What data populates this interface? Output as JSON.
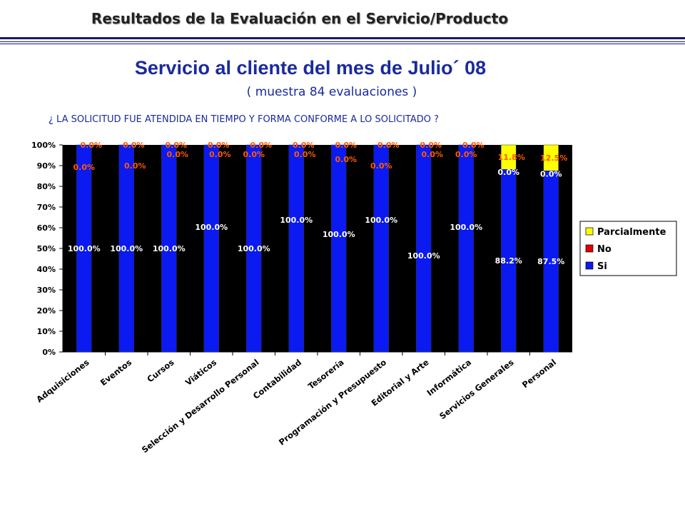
{
  "header": {
    "title": "Resultados de la Evaluación en el Servicio/Producto"
  },
  "main_title": "Servicio al cliente del mes de Julio´ 08",
  "subtitle": "( muestra 84 evaluaciones )",
  "question": "¿ LA SOLICITUD FUE ATENDIDA EN TIEMPO Y FORMA CONFORME A LO SOLICITADO ?",
  "chart_data": {
    "type": "bar",
    "stacked": true,
    "categories": [
      "Adquisiciones",
      "Eventos",
      "Cursos",
      "Viáticos",
      "Selección y Desarrollo Personal",
      "Contabilidad",
      "Tesorería",
      "Programación y Presupuesto",
      "Editorial y Arte",
      "Informática",
      "Servicios Generales",
      "Personal"
    ],
    "series": [
      {
        "name": "Si",
        "color": "#0a1af0",
        "values": [
          100.0,
          100.0,
          100.0,
          100.0,
          100.0,
          100.0,
          100.0,
          100.0,
          100.0,
          100.0,
          88.2,
          87.5
        ]
      },
      {
        "name": "No",
        "color": "#e00000",
        "values": [
          0.0,
          0.0,
          0.0,
          0.0,
          0.0,
          0.0,
          0.0,
          0.0,
          0.0,
          0.0,
          0.0,
          0.0
        ]
      },
      {
        "name": "Parcialmente",
        "color": "#ffff00",
        "values": [
          0.0,
          0.0,
          0.0,
          0.0,
          0.0,
          0.0,
          0.0,
          0.0,
          0.0,
          0.0,
          11.8,
          12.5
        ]
      }
    ],
    "data_labels": {
      "Si": [
        "100.0%",
        "100.0%",
        "100.0%",
        "100.0%",
        "100.0%",
        "100.0%",
        "100.0%",
        "100.0%",
        "100.0%",
        "100.0%",
        "88.2%",
        "87.5%"
      ],
      "No": [
        "0.0%",
        "0.0%",
        "0.0%",
        "0.0%",
        "0.0%",
        "0.0%",
        "0.0%",
        "0.0%",
        "0.0%",
        "0.0%",
        "0.0%",
        "0.0%"
      ],
      "Parcialmente": [
        "0.0%",
        "0.0%",
        "0.0%",
        "0.0%",
        "0.0%",
        "0.0%",
        "0.0%",
        "0.0%",
        "0.0%",
        "0.0%",
        "11.8%",
        "12.5%"
      ]
    },
    "y_ticks": [
      "0%",
      "10%",
      "20%",
      "30%",
      "40%",
      "50%",
      "60%",
      "70%",
      "80%",
      "90%",
      "100%"
    ],
    "ylim": [
      0,
      100
    ],
    "legend": {
      "placement": "right",
      "entries": [
        "Parcialmente",
        "No",
        "Si"
      ]
    },
    "plot_background": "#000000",
    "grid": false,
    "colors": {
      "si_label": "#ffffff",
      "no_label": "#ff5a00",
      "parcial_label": "#ff5a00",
      "title": "#1a2a9c"
    }
  }
}
